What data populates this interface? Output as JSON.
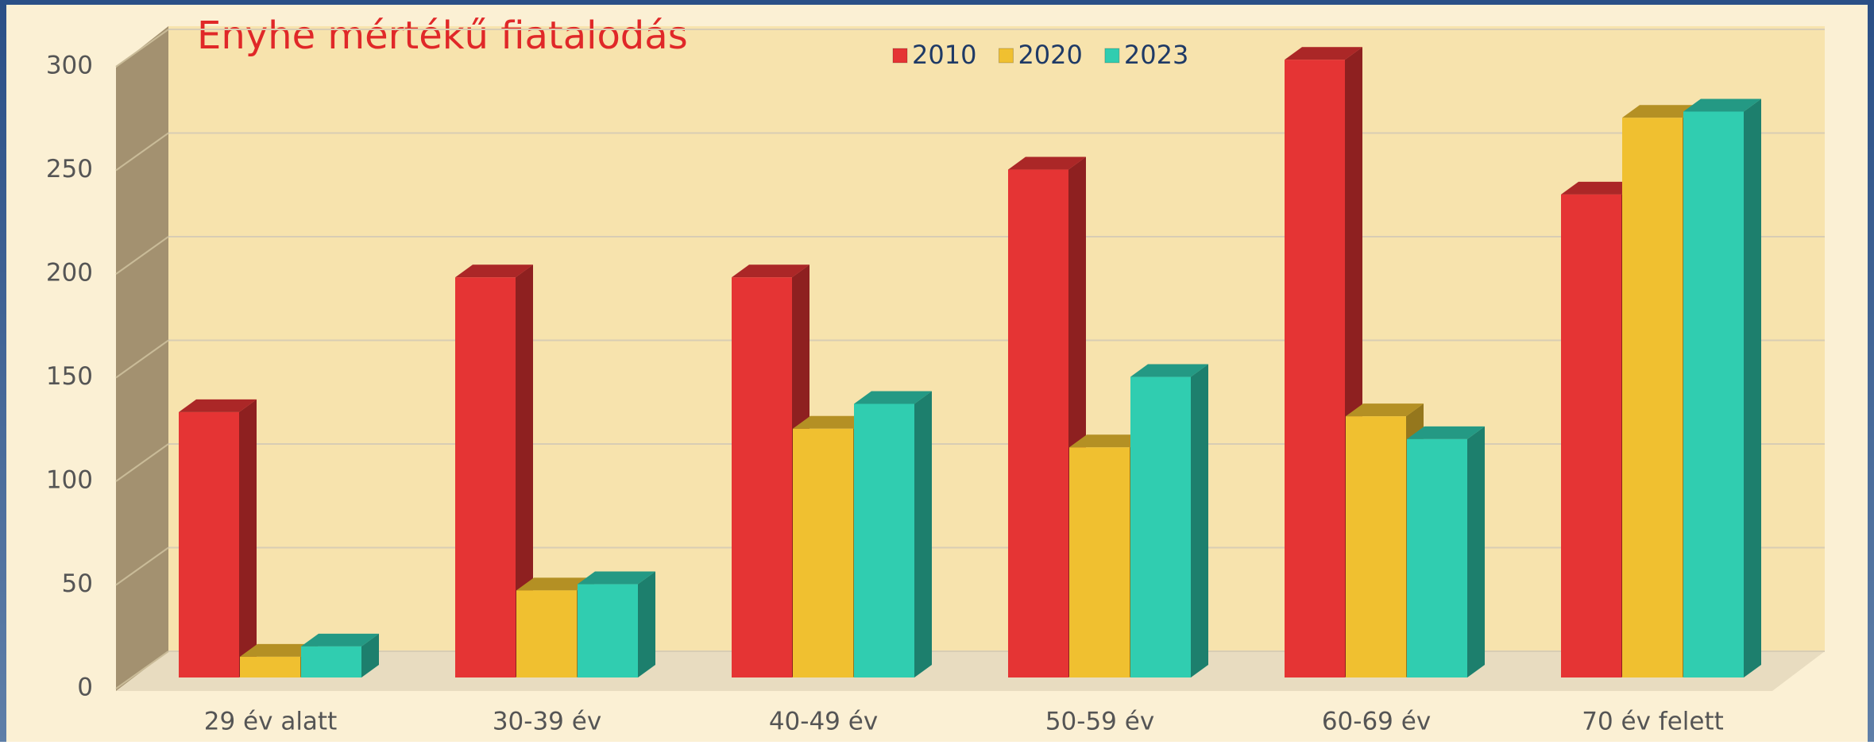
{
  "chart_data": {
    "type": "bar3d",
    "title": "Enyhe mértékű fiatalodás",
    "categories": [
      "29 év alatt",
      "30-39 év",
      "40-49 év",
      "50-59 év",
      "60-69 év",
      "70 év felett"
    ],
    "series": [
      {
        "name": "2010",
        "color": "#e53434",
        "values": [
          128,
          193,
          193,
          245,
          298,
          233
        ]
      },
      {
        "name": "2020",
        "color": "#f0c030",
        "values": [
          10,
          42,
          120,
          111,
          126,
          270
        ]
      },
      {
        "name": "2023",
        "color": "#30cdb0",
        "values": [
          15,
          45,
          132,
          145,
          115,
          273
        ]
      }
    ],
    "ylim": [
      0,
      300
    ],
    "yticks": [
      0,
      50,
      100,
      150,
      200,
      250,
      300
    ],
    "grid": true
  }
}
